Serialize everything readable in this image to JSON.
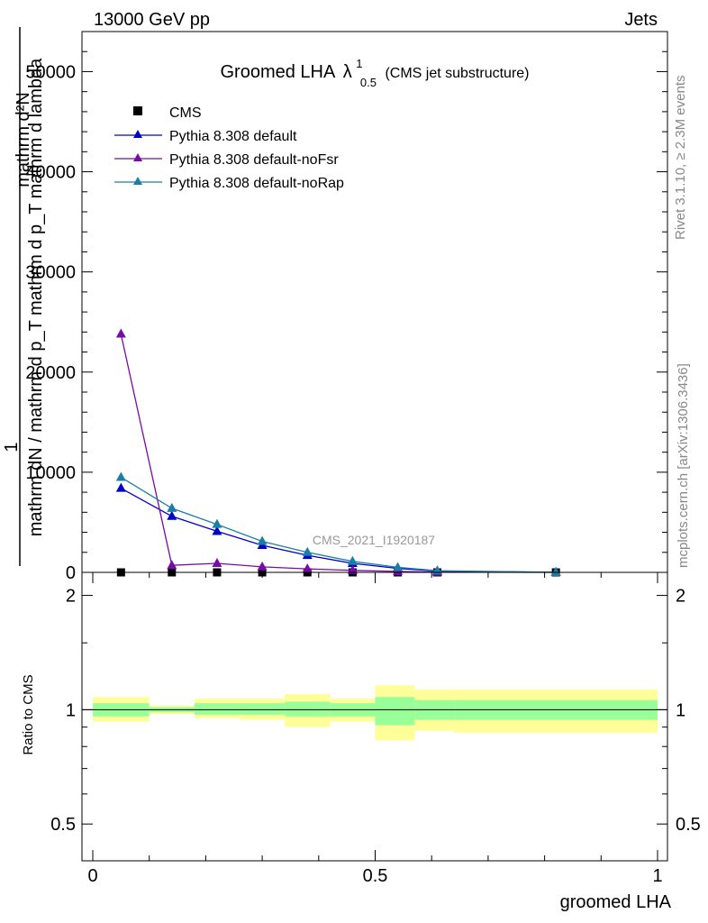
{
  "header": {
    "left": "13000 GeV pp",
    "right": "Jets"
  },
  "title": {
    "main": "Groomed LHA",
    "lambda": "λ",
    "sup": "1",
    "sub": "0.5",
    "paren": "(CMS jet substructure)"
  },
  "side_labels": {
    "rivet": "Rivet 3.1.10, ≥ 2.3M events",
    "mcplots": "mcplots.cern.ch [arXiv:1306.3436]"
  },
  "watermark": "CMS_2021_I1920187",
  "colors": {
    "cms": "#000000",
    "default": "#0000cc",
    "noFsr": "#7a0aa8",
    "noRap": "#1a7fa6",
    "band_inner": "#99ff99",
    "band_outer": "#ffff99"
  },
  "chart_data": [
    {
      "type": "line",
      "panel": "main",
      "xlabel": "",
      "ylabel_lines": [
        "1",
        "mathrm dN / mathrm d p_T mathrm d p_T mathrm d lambda",
        "mathrm d²N"
      ],
      "xlim": [
        0,
        1
      ],
      "ylim": [
        0,
        54000
      ],
      "y_ticks": [
        0,
        10000,
        20000,
        30000,
        40000,
        50000
      ],
      "y_tick_labels": [
        "0",
        "10000",
        "20000",
        "30000",
        "40000",
        "50000"
      ],
      "legend_position": "top-left",
      "series": [
        {
          "name": "CMS",
          "key": "cms",
          "marker": "square",
          "line": false,
          "x": [
            0.05,
            0.14,
            0.22,
            0.3,
            0.38,
            0.46,
            0.54,
            0.61,
            0.82
          ],
          "y": [
            0,
            0,
            0,
            0,
            0,
            0,
            0,
            0,
            0
          ]
        },
        {
          "name": "Pythia 8.308 default",
          "key": "default",
          "marker": "triangle",
          "line": true,
          "x": [
            0.05,
            0.14,
            0.22,
            0.3,
            0.38,
            0.46,
            0.54,
            0.61,
            0.82
          ],
          "y": [
            8400,
            5600,
            4100,
            2700,
            1700,
            900,
            400,
            130,
            10
          ]
        },
        {
          "name": "Pythia 8.308 default-noFsr",
          "key": "noFsr",
          "marker": "triangle",
          "line": true,
          "x": [
            0.05,
            0.14,
            0.22,
            0.3,
            0.38,
            0.46,
            0.54,
            0.61,
            0.82
          ],
          "y": [
            23800,
            700,
            900,
            550,
            350,
            200,
            90,
            30,
            0
          ]
        },
        {
          "name": "Pythia 8.308 default-noRap",
          "key": "noRap",
          "marker": "triangle",
          "line": true,
          "x": [
            0.05,
            0.14,
            0.22,
            0.3,
            0.38,
            0.46,
            0.54,
            0.61,
            0.82
          ],
          "y": [
            9500,
            6400,
            4800,
            3100,
            2000,
            1100,
            500,
            160,
            10
          ]
        }
      ]
    },
    {
      "type": "area",
      "panel": "ratio",
      "xlabel": "groomed LHA",
      "ylabel": "Ratio to CMS",
      "xlim": [
        0,
        1
      ],
      "ylim": [
        0.4,
        2.3
      ],
      "scale": "log",
      "y_ticks": [
        0.5,
        1,
        2
      ],
      "y_tick_labels": [
        "0.5",
        "1",
        "2"
      ],
      "x_ticks": [
        0,
        0.5,
        1
      ],
      "x_tick_labels": [
        "0",
        "0.5",
        "1"
      ],
      "reference_line": 1,
      "bins": [
        {
          "x0": 0.0,
          "x1": 0.1,
          "inner": [
            0.96,
            1.04
          ],
          "outer": [
            0.93,
            1.08
          ]
        },
        {
          "x0": 0.1,
          "x1": 0.18,
          "inner": [
            0.985,
            1.015
          ],
          "outer": [
            0.975,
            1.025
          ]
        },
        {
          "x0": 0.18,
          "x1": 0.26,
          "inner": [
            0.97,
            1.04
          ],
          "outer": [
            0.95,
            1.07
          ]
        },
        {
          "x0": 0.26,
          "x1": 0.34,
          "inner": [
            0.97,
            1.04
          ],
          "outer": [
            0.94,
            1.07
          ]
        },
        {
          "x0": 0.34,
          "x1": 0.42,
          "inner": [
            0.96,
            1.05
          ],
          "outer": [
            0.9,
            1.1
          ]
        },
        {
          "x0": 0.42,
          "x1": 0.5,
          "inner": [
            0.96,
            1.04
          ],
          "outer": [
            0.93,
            1.07
          ]
        },
        {
          "x0": 0.5,
          "x1": 0.57,
          "inner": [
            0.91,
            1.08
          ],
          "outer": [
            0.83,
            1.16
          ]
        },
        {
          "x0": 0.57,
          "x1": 0.64,
          "inner": [
            0.94,
            1.06
          ],
          "outer": [
            0.88,
            1.13
          ]
        },
        {
          "x0": 0.64,
          "x1": 1.0,
          "inner": [
            0.94,
            1.06
          ],
          "outer": [
            0.87,
            1.13
          ]
        }
      ]
    }
  ]
}
